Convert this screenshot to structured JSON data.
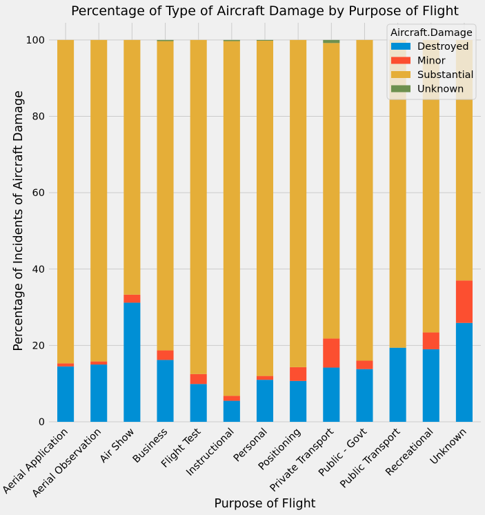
{
  "chart_data": {
    "type": "bar",
    "stacked": true,
    "title": "Percentage of Type of Aircraft Damage by Purpose of Flight",
    "xlabel": "Purpose of Flight",
    "ylabel": "Percentage of Incidents of Aircraft Damage",
    "ylim": [
      0,
      104.5
    ],
    "yticks": [
      0,
      20,
      40,
      60,
      80,
      100
    ],
    "grid": true,
    "legend": {
      "title": "Aircraft.Damage",
      "placement": "top-right"
    },
    "categories": [
      "Aerial Application",
      "Aerial Observation",
      "Air Show",
      "Business",
      "Flight Test",
      "Instructional",
      "Personal",
      "Positioning",
      "Private Transport",
      "Public - Govt",
      "Public Transport",
      "Recreational",
      "Unknown"
    ],
    "series": [
      {
        "name": "Destroyed",
        "color": "#008fd5",
        "values": [
          14.5,
          15.0,
          31.2,
          16.2,
          9.9,
          5.5,
          11.0,
          10.7,
          14.2,
          13.8,
          19.4,
          19.0,
          25.9
        ]
      },
      {
        "name": "Minor",
        "color": "#fc4f30",
        "values": [
          0.8,
          0.8,
          2.1,
          2.5,
          2.6,
          1.3,
          1.0,
          3.6,
          7.6,
          2.2,
          0.0,
          4.4,
          11.1
        ]
      },
      {
        "name": "Substantial",
        "color": "#e5ae38",
        "values": [
          84.7,
          84.2,
          66.7,
          81.0,
          87.5,
          92.9,
          87.8,
          85.7,
          77.4,
          84.0,
          80.6,
          76.6,
          63.0
        ]
      },
      {
        "name": "Unknown",
        "color": "#6d904f",
        "values": [
          0.0,
          0.0,
          0.0,
          0.3,
          0.0,
          0.3,
          0.2,
          0.0,
          0.8,
          0.0,
          0.0,
          0.0,
          0.0
        ]
      }
    ]
  }
}
